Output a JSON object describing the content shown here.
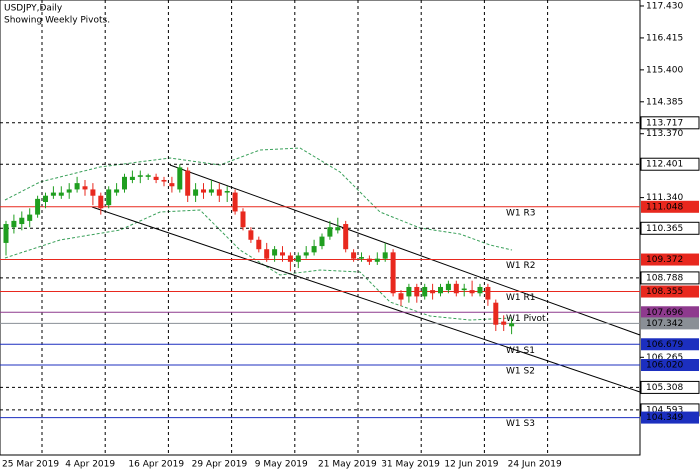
{
  "chart_data": {
    "type": "candlestick",
    "title": "USDJPY,Daily",
    "subtitle": "Showing Weekly Pivots.",
    "categories": [
      "25 Mar 2019",
      null,
      null,
      null,
      null,
      null,
      null,
      null,
      "4 Apr 2019",
      null,
      null,
      null,
      null,
      null,
      null,
      null,
      "16 Apr 2019",
      null,
      null,
      null,
      null,
      null,
      null,
      null,
      "29 Apr 2019",
      null,
      null,
      null,
      null,
      null,
      null,
      null,
      "9 May 2019",
      null,
      null,
      null,
      null,
      null,
      null,
      null,
      "21 May 2019",
      null,
      null,
      null,
      null,
      null,
      null,
      null,
      "31 May 2019",
      null,
      null,
      null,
      null,
      null,
      null,
      null,
      "12 Jun 2019",
      null,
      null,
      null,
      null,
      null,
      null,
      null,
      "24 Jun 2019"
    ],
    "open": [
      109.9,
      110.4,
      110.5,
      110.6,
      110.8,
      111.2,
      111.4,
      111.4,
      111.5,
      111.6,
      111.7,
      111.6,
      111.4,
      111.1,
      111.5,
      111.6,
      111.9,
      112.0,
      112.0,
      112.0,
      111.9,
      111.8,
      111.6,
      112.2,
      111.4,
      111.6,
      111.5,
      111.6,
      111.5,
      111.5,
      110.9,
      110.3,
      110.0,
      109.7,
      109.5,
      109.6,
      109.5,
      109.3,
      109.5,
      109.6,
      109.8,
      110.1,
      110.3,
      110.5,
      109.6,
      109.4,
      109.4,
      109.3,
      109.4,
      109.6,
      108.3,
      108.2,
      108.5,
      108.2,
      108.4,
      108.3,
      108.4,
      108.6,
      108.4,
      108.4,
      108.3,
      108.5,
      108.0,
      107.4,
      107.25
    ],
    "high": [
      110.6,
      110.8,
      110.9,
      111.0,
      111.4,
      111.5,
      111.7,
      111.7,
      111.8,
      112.0,
      111.9,
      111.8,
      111.5,
      111.7,
      111.8,
      112.1,
      112.2,
      112.2,
      112.1,
      112.1,
      112.0,
      112.0,
      112.4,
      112.3,
      111.8,
      111.8,
      111.9,
      111.8,
      111.7,
      111.6,
      111.0,
      110.4,
      110.1,
      109.9,
      109.8,
      109.8,
      109.6,
      109.6,
      109.8,
      110.0,
      110.2,
      110.6,
      110.7,
      110.6,
      109.7,
      109.6,
      109.5,
      109.6,
      109.9,
      109.7,
      108.4,
      108.6,
      108.6,
      108.6,
      108.6,
      108.6,
      108.7,
      108.7,
      108.6,
      108.7,
      108.6,
      108.6,
      108.1,
      107.6,
      107.5
    ],
    "low": [
      109.5,
      110.2,
      110.3,
      110.4,
      110.7,
      111.0,
      111.3,
      111.3,
      111.3,
      111.5,
      111.4,
      111.1,
      110.8,
      111.0,
      111.4,
      111.5,
      111.8,
      111.8,
      111.9,
      111.8,
      111.7,
      111.5,
      111.5,
      111.2,
      111.2,
      111.3,
      111.4,
      111.2,
      111.2,
      110.8,
      110.3,
      109.9,
      109.6,
      109.3,
      109.3,
      109.3,
      109.0,
      109.1,
      109.4,
      109.5,
      109.7,
      110.0,
      110.2,
      109.6,
      109.3,
      109.3,
      109.2,
      109.2,
      109.3,
      108.2,
      107.9,
      108.0,
      108.0,
      108.1,
      108.1,
      108.2,
      108.3,
      108.2,
      108.2,
      108.2,
      108.2,
      107.9,
      107.1,
      107.1,
      107.0
    ],
    "close": [
      110.5,
      110.6,
      110.7,
      110.8,
      111.3,
      111.4,
      111.5,
      111.5,
      111.6,
      111.8,
      111.6,
      111.4,
      111.0,
      111.6,
      111.6,
      112.0,
      112.0,
      112.05,
      112.05,
      111.9,
      111.85,
      111.7,
      112.3,
      111.4,
      111.6,
      111.5,
      111.6,
      111.4,
      111.55,
      110.9,
      110.4,
      110.0,
      109.7,
      109.4,
      109.7,
      109.5,
      109.3,
      109.5,
      109.6,
      109.8,
      110.1,
      110.4,
      110.4,
      109.7,
      109.4,
      109.45,
      109.3,
      109.4,
      109.6,
      108.3,
      108.1,
      108.5,
      108.2,
      108.5,
      108.3,
      108.5,
      108.6,
      108.3,
      108.45,
      108.3,
      108.5,
      108.1,
      107.3,
      107.3,
      107.342
    ],
    "up_color": "#1f9e1f",
    "down_color": "#e8281e",
    "ylim": [
      103.16,
      117.62
    ],
    "yticks": [
      {
        "value": 117.43,
        "label": "117.430"
      },
      116.415,
      {
        "value": 115.4,
        "label": "115.400"
      },
      114.385,
      {
        "value": 113.37,
        "label": "113.370"
      },
      {
        "value": 111.34,
        "label": "111.340"
      },
      106.265
    ],
    "hlines": [
      113.717,
      112.401,
      110.365,
      108.788,
      105.308,
      104.593
    ],
    "levels": [
      {
        "name": "W1 R3",
        "value": 111.048,
        "color": "#e8281e"
      },
      {
        "name": "W1 R2",
        "value": 109.372,
        "color": "#e8281e"
      },
      {
        "name": "W1 R1",
        "value": 108.355,
        "color": "#e8281e"
      },
      {
        "name": "W1 Pivot",
        "value": 107.696,
        "color": "#8e3a8e"
      },
      {
        "name": "W1 S1",
        "value": 106.679,
        "color": "#1c2fbf"
      },
      {
        "name": "W1 S2",
        "value": {
          "value": 106.02,
          "label": "106.020"
        },
        "color": "#1c2fbf"
      },
      {
        "name": "W1 S3",
        "value": 104.349,
        "color": "#1c2fbf"
      }
    ],
    "current_price": 107.342,
    "current_color": "#8a8f96"
  }
}
